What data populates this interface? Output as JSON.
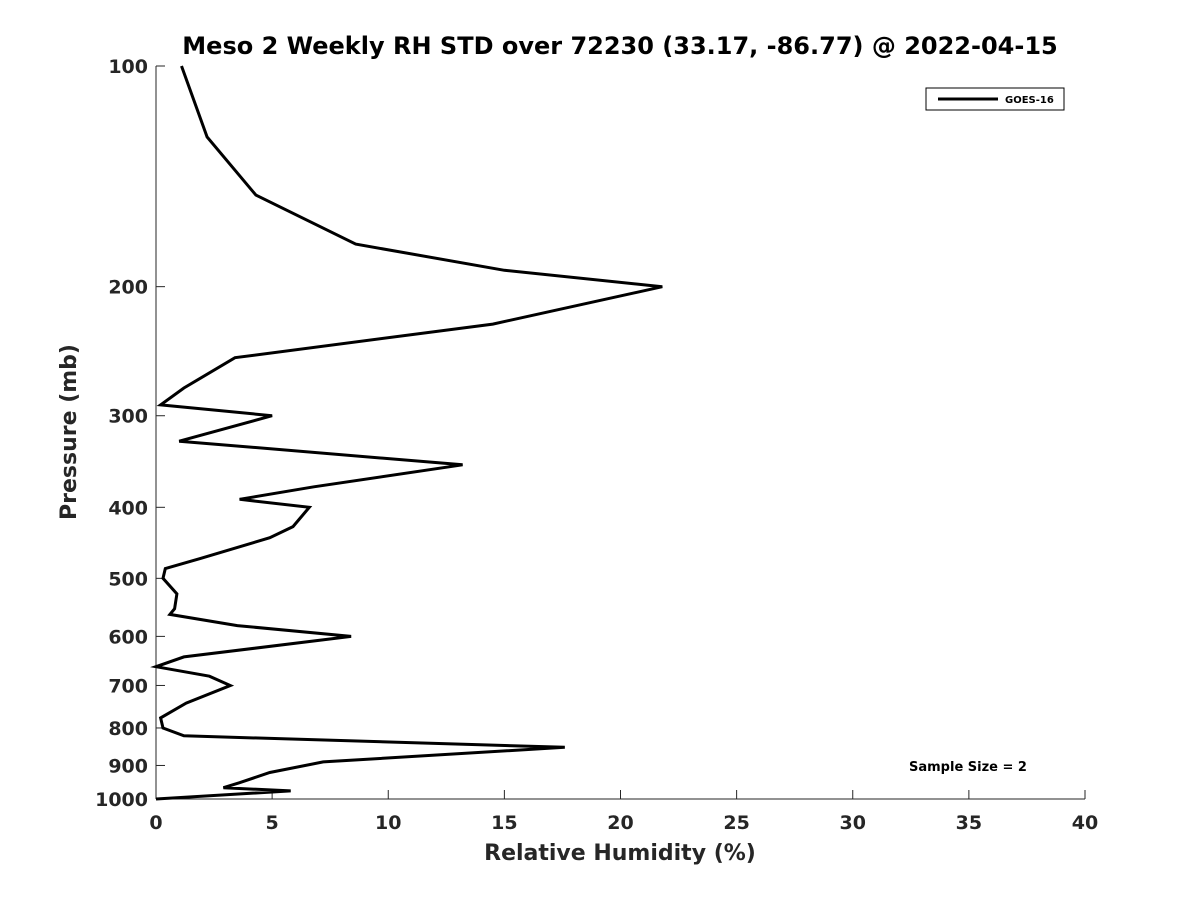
{
  "chart_data": {
    "type": "line",
    "title": "Meso 2 Weekly RH STD over 72230 (33.17, -86.77) @ 2022-04-15",
    "xlabel": "Relative Humidity (%)",
    "ylabel": "Pressure (mb)",
    "xlim": [
      0,
      40
    ],
    "ylim": [
      100,
      1000
    ],
    "yscale": "log",
    "yreversed": true,
    "grid": false,
    "xticks": [
      0,
      5,
      10,
      15,
      20,
      25,
      30,
      35,
      40
    ],
    "yticks": [
      100,
      200,
      300,
      400,
      500,
      600,
      700,
      800,
      900,
      1000
    ],
    "legend": {
      "position": "top-right",
      "entries": [
        "GOES-16"
      ]
    },
    "annotation": "Sample Size = 2",
    "series": [
      {
        "name": "GOES-16",
        "color": "#000000",
        "points": [
          [
            1.1,
            100
          ],
          [
            2.2,
            125
          ],
          [
            4.3,
            150
          ],
          [
            8.6,
            175
          ],
          [
            15.0,
            190
          ],
          [
            21.8,
            200
          ],
          [
            14.5,
            225
          ],
          [
            3.4,
            250
          ],
          [
            1.2,
            275
          ],
          [
            0.2,
            290
          ],
          [
            5.0,
            300
          ],
          [
            1.0,
            325
          ],
          [
            13.2,
            350
          ],
          [
            6.8,
            375
          ],
          [
            3.6,
            390
          ],
          [
            6.6,
            400
          ],
          [
            5.9,
            425
          ],
          [
            4.9,
            440
          ],
          [
            1.9,
            470
          ],
          [
            0.4,
            485
          ],
          [
            0.3,
            500
          ],
          [
            0.9,
            525
          ],
          [
            0.8,
            550
          ],
          [
            0.6,
            560
          ],
          [
            3.5,
            580
          ],
          [
            8.4,
            600
          ],
          [
            1.2,
            640
          ],
          [
            0.0,
            660
          ],
          [
            2.3,
            680
          ],
          [
            3.2,
            700
          ],
          [
            1.3,
            740
          ],
          [
            0.2,
            775
          ],
          [
            0.3,
            800
          ],
          [
            1.2,
            820
          ],
          [
            17.6,
            850
          ],
          [
            7.2,
            890
          ],
          [
            4.9,
            920
          ],
          [
            3.6,
            950
          ],
          [
            2.9,
            965
          ],
          [
            5.8,
            975
          ],
          [
            0.0,
            1000
          ]
        ]
      }
    ]
  }
}
